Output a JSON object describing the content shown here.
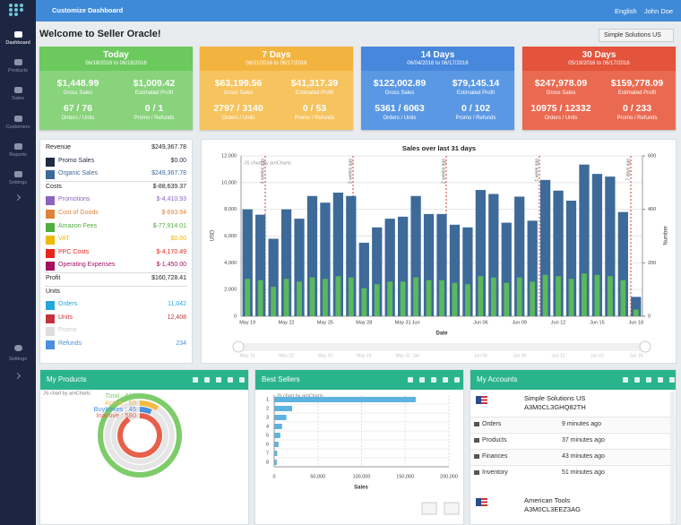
{
  "sidebar": {
    "items": [
      "Dashboard",
      "Products",
      "Sales",
      "Customers",
      "Reports",
      "Settings"
    ],
    "bottom": "Settings"
  },
  "topbar": {
    "title": "Customize Dashboard",
    "language": "English",
    "user": "John Doe"
  },
  "header": {
    "title": "Welcome to Seller Oracle!",
    "account": "Simple Solutions US"
  },
  "card_labels": [
    "Gross Sales",
    "Estimated Profit",
    "Orders / Units",
    "Promo / Refunds"
  ],
  "cards": [
    {
      "title": "Today",
      "dates": "06/18/2016 to 06/18/2016",
      "values": [
        "$1,448.99",
        "$1,009.42",
        "67 / 76",
        "0 / 1"
      ],
      "color": "#6cc95e",
      "body": "#88d37c"
    },
    {
      "title": "7 Days",
      "dates": "06/11/2016 to 06/17/2016",
      "values": [
        "$63,199.56",
        "$41,317.39",
        "2797 / 3140",
        "0 / 53"
      ],
      "color": "#f3b43f",
      "body": "#f6c35e"
    },
    {
      "title": "14 Days",
      "dates": "06/04/2016 to 06/17/2016",
      "values": [
        "$122,002.89",
        "$79,145.14",
        "5361 / 6063",
        "0 / 102"
      ],
      "color": "#4787dc",
      "body": "#5b98e4"
    },
    {
      "title": "30 Days",
      "dates": "05/19/2016 to 06/17/2016",
      "values": [
        "$247,978.09",
        "$159,778.09",
        "10975 / 12332",
        "0 / 233"
      ],
      "color": "#e4533b",
      "body": "#ea6a51"
    }
  ],
  "summary": {
    "rows": [
      {
        "label": "Revenue",
        "value": "$249,367.78",
        "kind": "section"
      },
      {
        "label": "Promo Sales",
        "value": "$0.00",
        "color": "#1f2a44"
      },
      {
        "label": "Organic Sales",
        "value": "$249,367.78",
        "color": "#3d6a99"
      },
      {
        "label": "Costs",
        "value": "$-88,639.37",
        "kind": "section"
      },
      {
        "label": "Promotions",
        "value": "$-4,410.93",
        "color": "#8e62c0"
      },
      {
        "label": "Cost of Goods",
        "value": "$-693.94",
        "color": "#e0823a"
      },
      {
        "label": "Amazon Fees",
        "value": "$-77,914.01",
        "color": "#4fae3e"
      },
      {
        "label": "VAT",
        "value": "$0.00",
        "color": "#f0b800"
      },
      {
        "label": "PPC Costs",
        "value": "$-4,170.49",
        "color": "#e8251b"
      },
      {
        "label": "Operating Expenses",
        "value": "$-1,450.00",
        "color": "#a3115f"
      },
      {
        "label": "Profit",
        "value": "$160,728.41",
        "kind": "section"
      },
      {
        "label": "Units",
        "kind": "section"
      },
      {
        "label": "Orders",
        "value": "11,042",
        "color": "#24a6dc"
      },
      {
        "label": "Units",
        "value": "12,408",
        "color": "#c4323c"
      },
      {
        "label": "Promo",
        "color": "#dddddd"
      },
      {
        "label": "Refunds",
        "value": "234",
        "color": "#4a8fe0"
      }
    ]
  },
  "chart_data": [
    {
      "type": "bar",
      "title": "Sales over last 31 days",
      "credit": "JS chart by amCharts",
      "x_label": "Date",
      "y_label": "USD",
      "y2_label": "Number",
      "annotations": [
        "4 weeks ago",
        "3 weeks ago",
        "2 weeks ago",
        "1 week ago",
        "7 days ago"
      ],
      "categories": [
        "May 19",
        null,
        null,
        "May 22",
        null,
        null,
        "May 25",
        null,
        null,
        "May 28",
        null,
        null,
        "May 31",
        "Jun",
        null,
        null,
        null,
        null,
        "Jun 06",
        null,
        null,
        "Jun 09",
        null,
        null,
        "Jun 12",
        null,
        null,
        "Jun 15",
        null,
        null,
        "Jun 18"
      ],
      "series": [
        {
          "color": "#3d6a99",
          "values": [
            8000,
            7600,
            5800,
            8000,
            7300,
            9000,
            8500,
            9250,
            9000,
            5500,
            6650,
            7300,
            7450,
            9000,
            7650,
            7650,
            6850,
            6650,
            9450,
            9150,
            7000,
            8950,
            7150,
            10200,
            9400,
            8650,
            11350,
            10650,
            10450,
            7800,
            1450
          ]
        },
        {
          "color": "#5cb85c",
          "axis": "y2",
          "values": [
            140,
            135,
            110,
            140,
            130,
            145,
            140,
            150,
            145,
            105,
            120,
            130,
            130,
            145,
            135,
            135,
            125,
            120,
            150,
            145,
            125,
            145,
            130,
            155,
            150,
            140,
            160,
            155,
            150,
            135,
            25
          ]
        }
      ],
      "ylim": [
        0,
        12000
      ],
      "yticks": [
        0,
        {
          "value": 2000,
          "label": "2,000"
        },
        {
          "value": 4000,
          "label": "4,000"
        },
        {
          "value": 6000,
          "label": "6,000"
        },
        {
          "value": 8000,
          "label": "8,000"
        },
        {
          "value": 10000,
          "label": "10,000"
        },
        {
          "value": 12000,
          "label": "12,000"
        }
      ],
      "y2lim": [
        0,
        600
      ],
      "y2ticks": [
        0,
        200,
        400,
        600
      ],
      "grid": true
    },
    {
      "type": "radial",
      "title": "My Products",
      "credit": "JS chart by amCharts",
      "values": [
        639,
        59,
        45,
        580
      ],
      "value_labels": [
        "Total : 639",
        "Active : 59",
        "Buyboxes : 45",
        "Inactive : 580"
      ],
      "colors": [
        "#7dcc6a",
        "#f3bb46",
        "#4a90e2",
        "#e8604a"
      ]
    },
    {
      "type": "hbar",
      "title": "Best Sellers",
      "credit": "JS chart by amCharts",
      "x_label": "Sales",
      "categories": [
        "1",
        "2",
        "3",
        "4",
        "5",
        "6",
        "7",
        "8"
      ],
      "values": [
        162000,
        20500,
        14000,
        9000,
        7000,
        5000,
        3500,
        3000
      ],
      "color": "#5db3e0",
      "xlim": [
        0,
        200000
      ],
      "xticks": [
        0,
        {
          "value": 50000,
          "label": "50,000"
        },
        {
          "value": 100000,
          "label": "100,000"
        },
        {
          "value": 150000,
          "label": "150,000"
        },
        {
          "value": 200000,
          "label": "200,000"
        }
      ],
      "grid": true
    }
  ],
  "accounts": {
    "title": "My Accounts",
    "list": [
      {
        "name": "Simple Solutions US",
        "id": "A3M0CL3GHQ82TH",
        "rows": [
          [
            "Orders",
            "9 minutes ago"
          ],
          [
            "Products",
            "37 minutes ago"
          ],
          [
            "Finances",
            "43 minutes ago"
          ],
          [
            "Inventory",
            "51 minutes ago"
          ]
        ]
      },
      {
        "name": "American Tools",
        "id": "A3M0CL3EEZ3AG",
        "rows": []
      }
    ]
  }
}
